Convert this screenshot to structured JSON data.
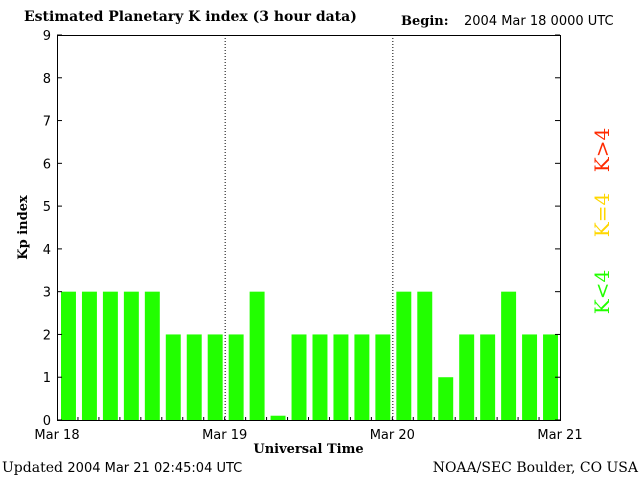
{
  "header": {
    "title": "Estimated Planetary K index (3 hour data)",
    "begin_label": "Begin:",
    "begin_value": "2004 Mar 18 0000 UTC"
  },
  "footer": {
    "updated_label": "Updated",
    "updated_value": "2004 Mar 21 02:45:04 UTC",
    "source": "NOAA/SEC Boulder, CO USA"
  },
  "legend": [
    {
      "label": "K>4",
      "color": "#ff2a00"
    },
    {
      "label": "K=4",
      "color": "#ffd700"
    },
    {
      "label": "K<4",
      "color": "#22ff00"
    }
  ],
  "chart_data": {
    "type": "bar",
    "ylabel": "Kp index",
    "xlabel": "Universal Time",
    "ylim": [
      0,
      9
    ],
    "yticks": [
      "0",
      "1",
      "2",
      "3",
      "4",
      "5",
      "6",
      "7",
      "8",
      "9"
    ],
    "xticks": [
      "Mar 18",
      "Mar 19",
      "Mar 20",
      "Mar 21"
    ],
    "day_dividers": [
      "Mar 19",
      "Mar 20"
    ],
    "categories": [
      "Mar 18 00",
      "Mar 18 03",
      "Mar 18 06",
      "Mar 18 09",
      "Mar 18 12",
      "Mar 18 15",
      "Mar 18 18",
      "Mar 18 21",
      "Mar 19 00",
      "Mar 19 03",
      "Mar 19 06",
      "Mar 19 09",
      "Mar 19 12",
      "Mar 19 15",
      "Mar 19 18",
      "Mar 19 21",
      "Mar 20 00",
      "Mar 20 03",
      "Mar 20 06",
      "Mar 20 09",
      "Mar 20 12",
      "Mar 20 15",
      "Mar 20 18",
      "Mar 20 21"
    ],
    "values": [
      3,
      3,
      3,
      3,
      3,
      2,
      2,
      2,
      2,
      3,
      0.1,
      2,
      2,
      2,
      2,
      2,
      3,
      3,
      1,
      2,
      2,
      3,
      2,
      2
    ],
    "bar_color": "#22ff00"
  }
}
